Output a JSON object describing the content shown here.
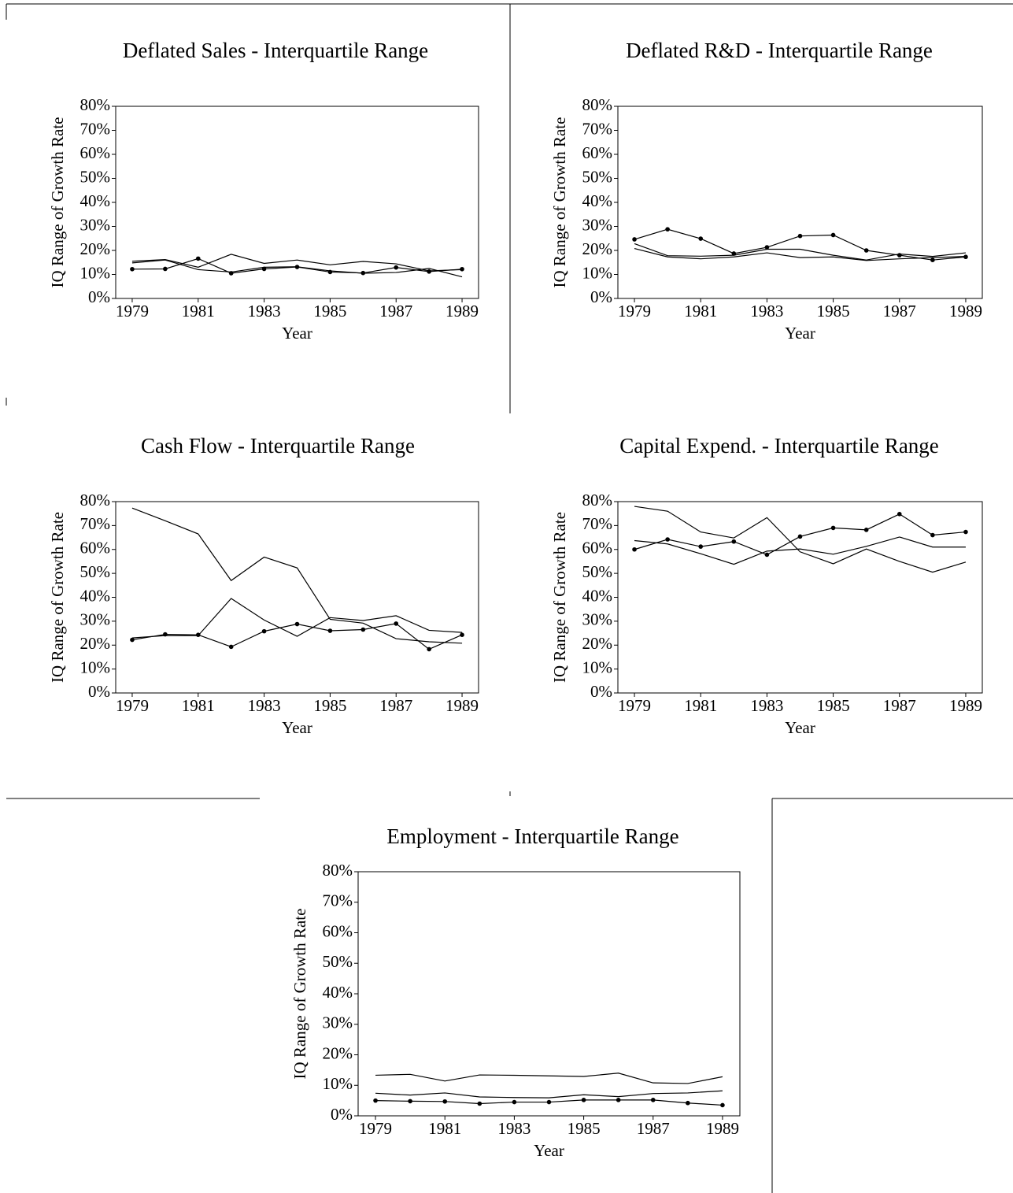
{
  "chart_data": [
    {
      "type": "line",
      "title": "Deflated Sales - Interquartile Range",
      "xlabel": "Year",
      "ylabel": "IQ Range of Growth Rate",
      "x": [
        1979,
        1980,
        1981,
        1982,
        1983,
        1984,
        1985,
        1986,
        1987,
        1988,
        1989
      ],
      "xlim": [
        1978.5,
        1989.5
      ],
      "xticks": [
        1979,
        1981,
        1983,
        1985,
        1987,
        1989
      ],
      "ylim": [
        0,
        80
      ],
      "yticks": [
        {
          "value": 0,
          "label": "0%"
        },
        {
          "value": 10,
          "label": "10%"
        },
        {
          "value": 20,
          "label": "20%"
        },
        {
          "value": 30,
          "label": "30%"
        },
        {
          "value": 40,
          "label": "40%"
        },
        {
          "value": 50,
          "label": "50%"
        },
        {
          "value": 60,
          "label": "60%"
        },
        {
          "value": 70,
          "label": "70%"
        },
        {
          "value": 80,
          "label": "80%"
        }
      ],
      "series": [
        {
          "color": "#000000",
          "marker": "circle",
          "values": [
            12.2,
            12.3,
            16.6,
            10.5,
            12.3,
            13.1,
            11.0,
            10.6,
            12.9,
            11.2,
            12.2
          ]
        },
        {
          "color": "#000000",
          "values": [
            15.5,
            16.2,
            13.0,
            18.4,
            14.6,
            16.0,
            14.0,
            15.4,
            14.4,
            11.5,
            12.0
          ]
        },
        {
          "color": "#000000",
          "values": [
            14.8,
            16.0,
            12.0,
            11.0,
            13.0,
            13.2,
            11.5,
            10.5,
            10.8,
            12.5,
            9.0
          ]
        }
      ]
    },
    {
      "type": "line",
      "title": "Deflated R&D - Interquartile Range",
      "xlabel": "Year",
      "ylabel": "IQ Range of Growth Rate",
      "x": [
        1979,
        1980,
        1981,
        1982,
        1983,
        1984,
        1985,
        1986,
        1987,
        1988,
        1989
      ],
      "xlim": [
        1978.5,
        1989.5
      ],
      "xticks": [
        1979,
        1981,
        1983,
        1985,
        1987,
        1989
      ],
      "ylim": [
        0,
        80
      ],
      "yticks": [
        {
          "value": 0,
          "label": "0%"
        },
        {
          "value": 10,
          "label": "10%"
        },
        {
          "value": 20,
          "label": "20%"
        },
        {
          "value": 30,
          "label": "30%"
        },
        {
          "value": 40,
          "label": "40%"
        },
        {
          "value": 50,
          "label": "50%"
        },
        {
          "value": 60,
          "label": "60%"
        },
        {
          "value": 70,
          "label": "70%"
        },
        {
          "value": 80,
          "label": "80%"
        }
      ],
      "series": [
        {
          "color": "#000000",
          "marker": "circle",
          "values": [
            24.6,
            28.8,
            24.9,
            18.7,
            21.3,
            26.0,
            26.4,
            20.0,
            18.0,
            16.0,
            17.3
          ]
        },
        {
          "color": "#000000",
          "values": [
            22.8,
            17.8,
            17.6,
            18.0,
            20.5,
            20.5,
            18.0,
            16.0,
            18.5,
            17.5,
            19.0
          ]
        },
        {
          "color": "#000000",
          "values": [
            20.8,
            17.3,
            16.5,
            17.3,
            19.0,
            17.0,
            17.3,
            15.8,
            16.5,
            17.0,
            17.5
          ]
        }
      ]
    },
    {
      "type": "line",
      "title": "Cash Flow - Interquartile Range",
      "xlabel": "Year",
      "ylabel": "IQ Range of Growth Rate",
      "x": [
        1979,
        1980,
        1981,
        1982,
        1983,
        1984,
        1985,
        1986,
        1987,
        1988,
        1989
      ],
      "xlim": [
        1978.5,
        1989.5
      ],
      "xticks": [
        1979,
        1981,
        1983,
        1985,
        1987,
        1989
      ],
      "ylim": [
        0,
        80
      ],
      "yticks": [
        {
          "value": 0,
          "label": "0%"
        },
        {
          "value": 10,
          "label": "10%"
        },
        {
          "value": 20,
          "label": "20%"
        },
        {
          "value": 30,
          "label": "30%"
        },
        {
          "value": 40,
          "label": "40%"
        },
        {
          "value": 50,
          "label": "50%"
        },
        {
          "value": 60,
          "label": "60%"
        },
        {
          "value": 70,
          "label": "70%"
        },
        {
          "value": 80,
          "label": "80%"
        }
      ],
      "series": [
        {
          "color": "#000000",
          "marker": "circle",
          "values": [
            22.2,
            24.5,
            24.3,
            19.3,
            25.8,
            28.8,
            26.0,
            26.5,
            29.0,
            18.3,
            24.3
          ]
        },
        {
          "color": "#000000",
          "values": [
            77.3,
            72.0,
            66.5,
            47.0,
            56.8,
            52.3,
            30.8,
            29.2,
            22.7,
            21.4,
            20.8
          ]
        },
        {
          "color": "#000000",
          "values": [
            23.0,
            24.0,
            24.0,
            39.5,
            30.5,
            23.7,
            31.5,
            30.3,
            32.3,
            26.2,
            25.3
          ]
        }
      ]
    },
    {
      "type": "line",
      "title": "Capital Expend. - Interquartile Range",
      "xlabel": "Year",
      "ylabel": "IQ Range of Growth Rate",
      "x": [
        1979,
        1980,
        1981,
        1982,
        1983,
        1984,
        1985,
        1986,
        1987,
        1988,
        1989
      ],
      "xlim": [
        1978.5,
        1989.5
      ],
      "xticks": [
        1979,
        1981,
        1983,
        1985,
        1987,
        1989
      ],
      "ylim": [
        0,
        80
      ],
      "yticks": [
        {
          "value": 0,
          "label": "0%"
        },
        {
          "value": 10,
          "label": "10%"
        },
        {
          "value": 20,
          "label": "20%"
        },
        {
          "value": 30,
          "label": "30%"
        },
        {
          "value": 40,
          "label": "40%"
        },
        {
          "value": 50,
          "label": "50%"
        },
        {
          "value": 60,
          "label": "60%"
        },
        {
          "value": 70,
          "label": "70%"
        },
        {
          "value": 80,
          "label": "80%"
        }
      ],
      "series": [
        {
          "color": "#000000",
          "marker": "circle",
          "values": [
            60.0,
            64.2,
            61.2,
            63.3,
            57.8,
            65.4,
            69.0,
            68.2,
            74.8,
            66.0,
            67.3
          ]
        },
        {
          "color": "#000000",
          "values": [
            78.0,
            76.0,
            67.3,
            64.8,
            73.3,
            59.0,
            54.0,
            60.2,
            55.0,
            50.5,
            54.7
          ]
        },
        {
          "color": "#000000",
          "values": [
            63.7,
            62.3,
            58.2,
            53.8,
            59.3,
            60.2,
            58.0,
            61.3,
            65.2,
            61.0,
            61.0
          ]
        }
      ]
    },
    {
      "type": "line",
      "title": "Employment - Interquartile Range",
      "xlabel": "Year",
      "ylabel": "IQ Range of Growth Rate",
      "x": [
        1979,
        1980,
        1981,
        1982,
        1983,
        1984,
        1985,
        1986,
        1987,
        1988,
        1989
      ],
      "xlim": [
        1978.5,
        1989.5
      ],
      "xticks": [
        1979,
        1981,
        1983,
        1985,
        1987,
        1989
      ],
      "ylim": [
        0,
        80
      ],
      "yticks": [
        {
          "value": 0,
          "label": "0%"
        },
        {
          "value": 10,
          "label": "10%"
        },
        {
          "value": 20,
          "label": "20%"
        },
        {
          "value": 30,
          "label": "30%"
        },
        {
          "value": 40,
          "label": "40%"
        },
        {
          "value": 50,
          "label": "50%"
        },
        {
          "value": 60,
          "label": "60%"
        },
        {
          "value": 70,
          "label": "70%"
        },
        {
          "value": 80,
          "label": "80%"
        }
      ],
      "series": [
        {
          "color": "#000000",
          "marker": "circle",
          "values": [
            5.0,
            4.8,
            4.7,
            4.0,
            4.5,
            4.5,
            5.2,
            5.2,
            5.2,
            4.2,
            3.5
          ]
        },
        {
          "color": "#000000",
          "values": [
            13.3,
            13.6,
            11.4,
            13.4,
            13.3,
            13.1,
            12.9,
            14.0,
            10.8,
            10.6,
            12.8
          ]
        },
        {
          "color": "#000000",
          "values": [
            7.4,
            6.8,
            7.5,
            6.2,
            6.0,
            5.9,
            6.9,
            6.3,
            7.3,
            7.5,
            8.2
          ]
        }
      ]
    }
  ]
}
